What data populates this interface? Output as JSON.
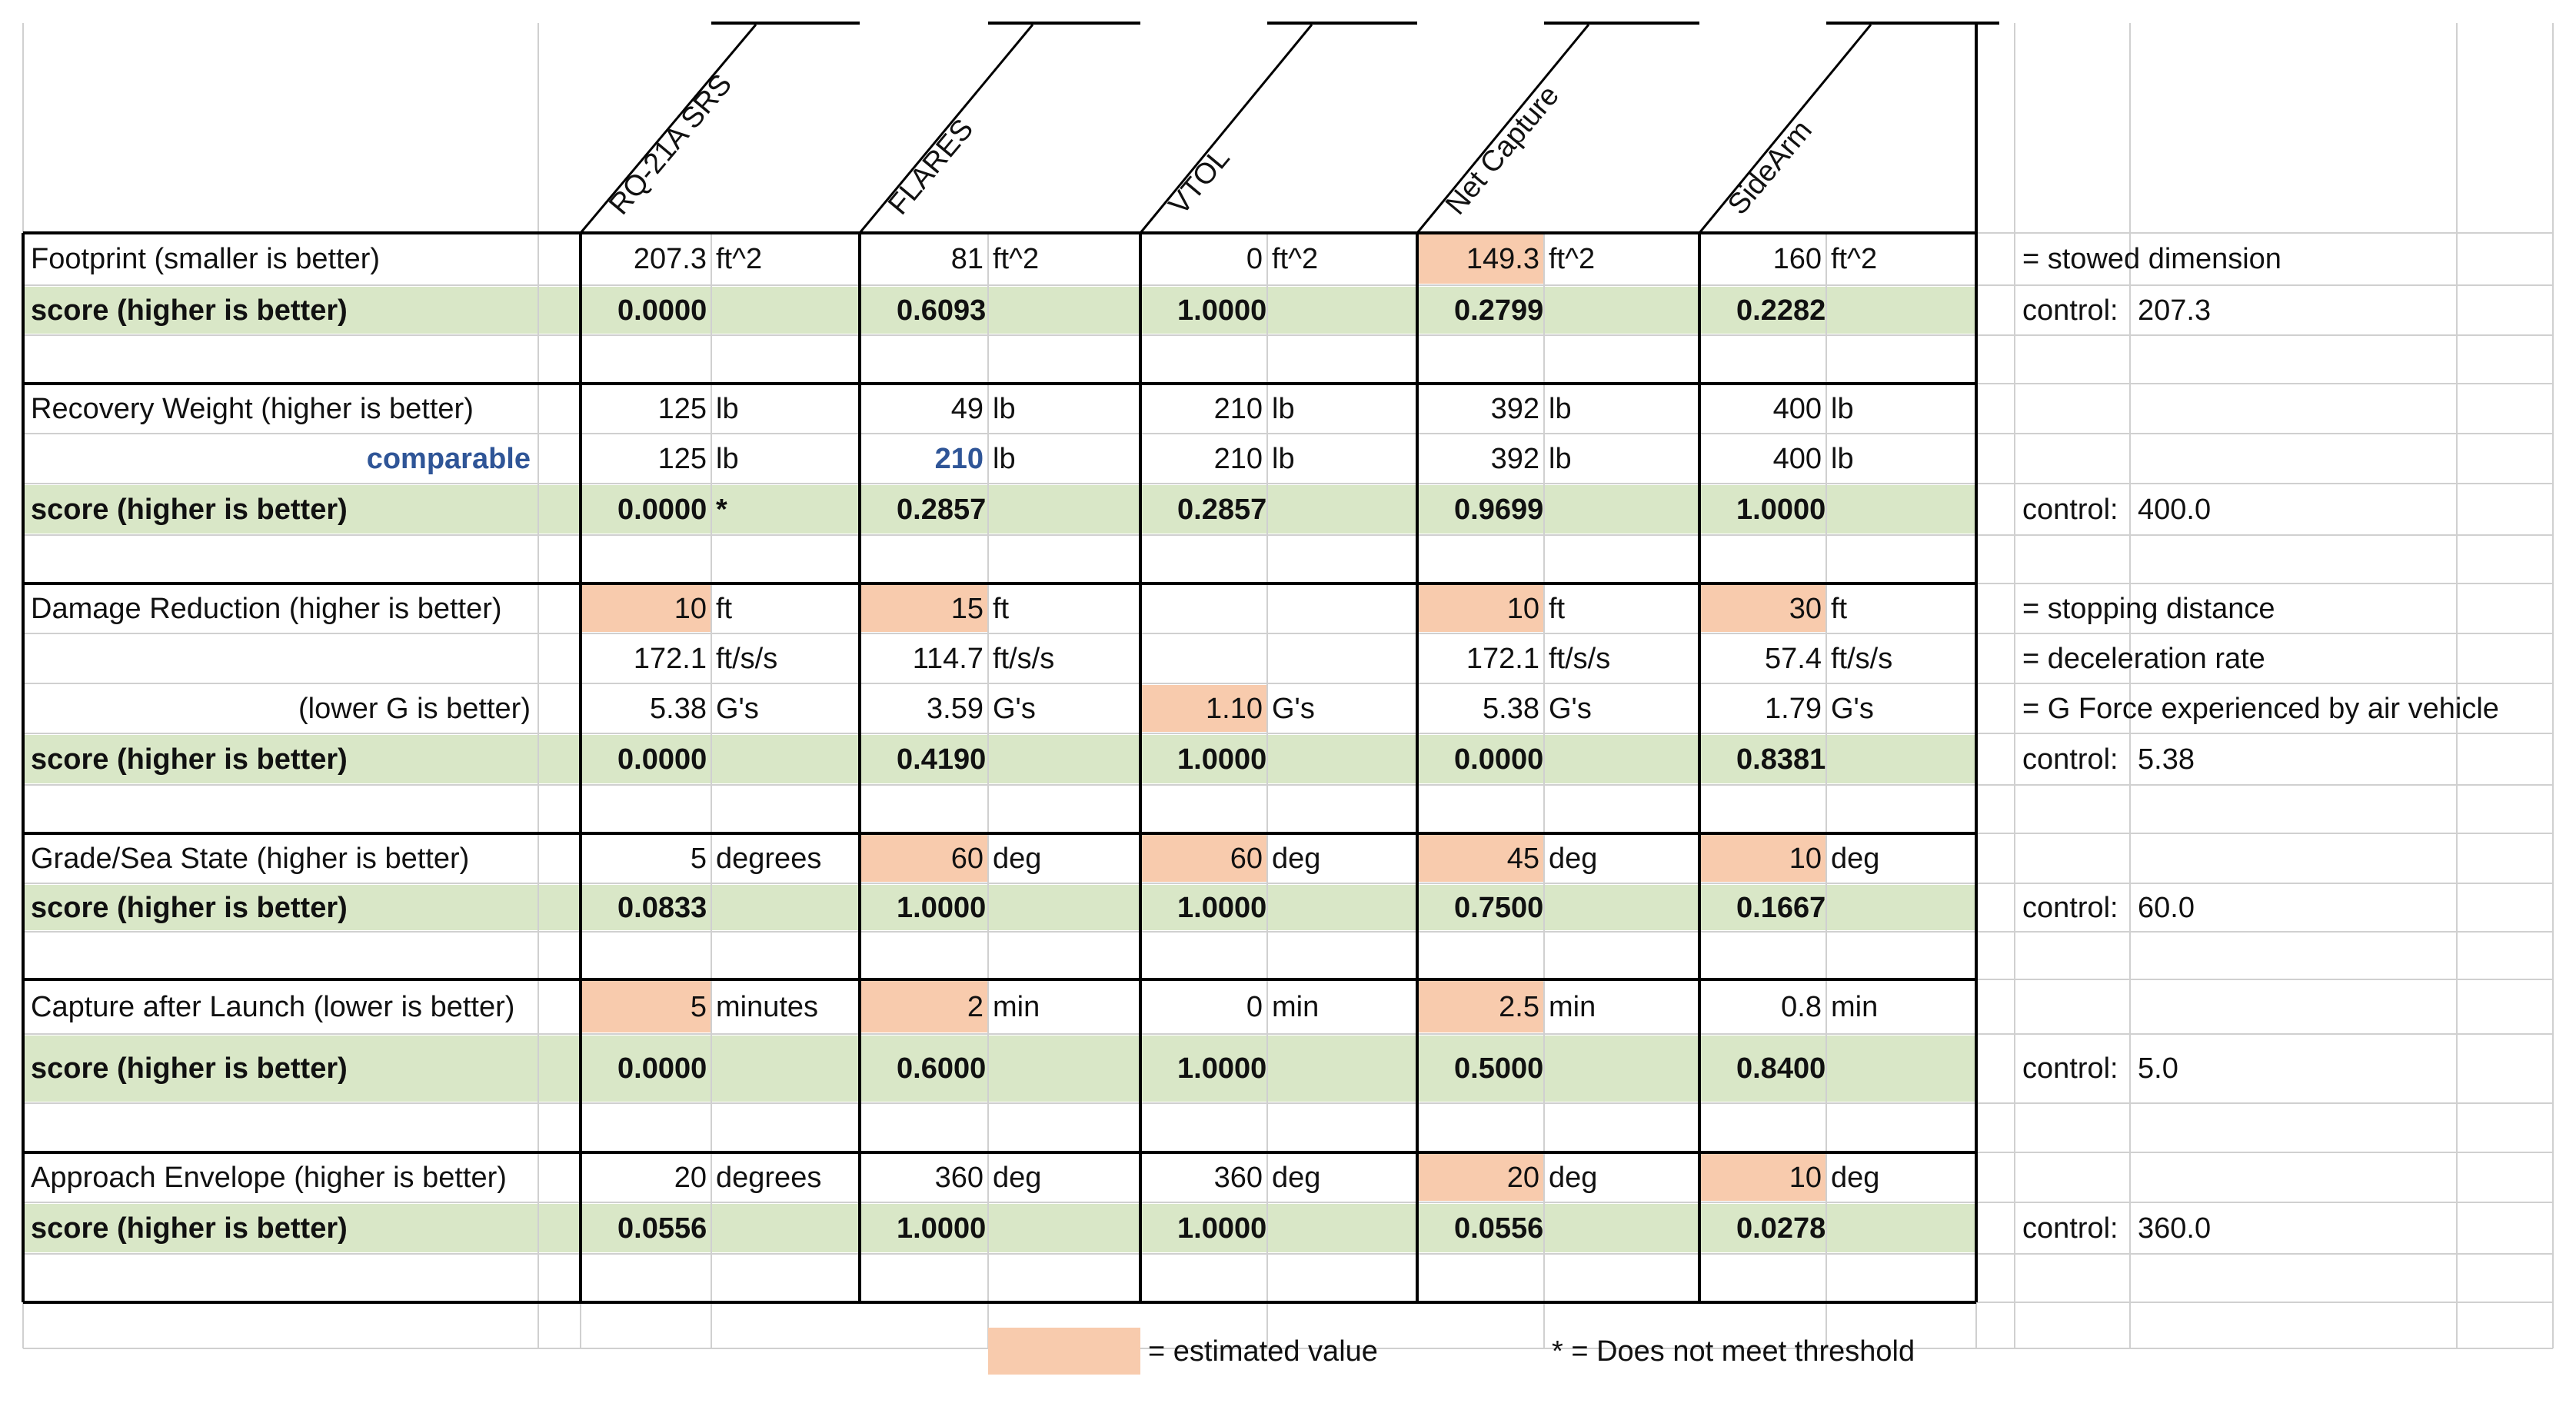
{
  "headers": [
    "RQ-21A SRS",
    "FLARES",
    "VTOL",
    "Net Capture",
    "SideArm"
  ],
  "colors": {
    "estimated": "#f8cbad",
    "score": "#d9e7c7",
    "grid": "#d0d0d0",
    "border": "#000000",
    "comparable": "#2f5597"
  },
  "sections": [
    {
      "rows": [
        {
          "label": "Footprint (smaller is better)",
          "values": [
            "207.3",
            "81",
            "0",
            "149.3",
            "160"
          ],
          "units": [
            "ft^2",
            "ft^2",
            "ft^2",
            "ft^2",
            "ft^2"
          ],
          "estimated": [
            false,
            false,
            false,
            true,
            false
          ],
          "note": "= stowed dimension"
        },
        {
          "label": "score (higher is better)",
          "score": true,
          "values": [
            "0.0000",
            "0.6093",
            "1.0000",
            "0.2799",
            "0.2282"
          ],
          "marks": [
            "",
            "",
            "",
            "",
            ""
          ],
          "control_label": "control:",
          "control_value": "207.3"
        }
      ]
    },
    {
      "rows": [
        {
          "label": "Recovery Weight (higher is better)",
          "values": [
            "125",
            "49",
            "210",
            "392",
            "400"
          ],
          "units": [
            "lb",
            "lb",
            "lb",
            "lb",
            "lb"
          ],
          "estimated": [
            false,
            false,
            false,
            false,
            false
          ]
        },
        {
          "label": "comparable",
          "comparable": true,
          "values": [
            "125",
            "210",
            "210",
            "392",
            "400"
          ],
          "units": [
            "lb",
            "lb",
            "lb",
            "lb",
            "lb"
          ],
          "estimated": [
            false,
            false,
            false,
            false,
            false
          ],
          "blue": [
            false,
            true,
            false,
            false,
            false
          ]
        },
        {
          "label": "score (higher is better)",
          "score": true,
          "values": [
            "0.0000",
            "0.2857",
            "0.2857",
            "0.9699",
            "1.0000"
          ],
          "marks": [
            "*",
            "",
            "",
            "",
            ""
          ],
          "control_label": "control:",
          "control_value": "400.0"
        }
      ]
    },
    {
      "rows": [
        {
          "label": "Damage Reduction (higher is better)",
          "values": [
            "10",
            "15",
            "",
            "10",
            "30"
          ],
          "units": [
            "ft",
            "ft",
            "",
            "ft",
            "ft"
          ],
          "estimated": [
            true,
            true,
            false,
            true,
            true
          ],
          "note": "= stopping distance"
        },
        {
          "label": "",
          "values": [
            "172.1",
            "114.7",
            "",
            "172.1",
            "57.4"
          ],
          "units": [
            "ft/s/s",
            "ft/s/s",
            "",
            "ft/s/s",
            "ft/s/s"
          ],
          "estimated": [
            false,
            false,
            false,
            false,
            false
          ],
          "note": "= deceleration rate"
        },
        {
          "label": "(lower G is better)",
          "labelRight": true,
          "values": [
            "5.38",
            "3.59",
            "1.10",
            "5.38",
            "1.79"
          ],
          "units": [
            "G's",
            "G's",
            "G's",
            "G's",
            "G's"
          ],
          "estimated": [
            false,
            false,
            true,
            false,
            false
          ],
          "note": "= G Force experienced by air vehicle"
        },
        {
          "label": "score (higher is better)",
          "score": true,
          "values": [
            "0.0000",
            "0.4190",
            "1.0000",
            "0.0000",
            "0.8381"
          ],
          "marks": [
            "",
            "",
            "",
            "",
            ""
          ],
          "control_label": "control:",
          "control_value": "5.38"
        }
      ]
    },
    {
      "rows": [
        {
          "label": "Grade/Sea State (higher is better)",
          "values": [
            "5",
            "60",
            "60",
            "45",
            "10"
          ],
          "units": [
            "degrees",
            "deg",
            "deg",
            "deg",
            "deg"
          ],
          "estimated": [
            false,
            true,
            true,
            true,
            true
          ]
        },
        {
          "label": "score (higher is better)",
          "score": true,
          "values": [
            "0.0833",
            "1.0000",
            "1.0000",
            "0.7500",
            "0.1667"
          ],
          "marks": [
            "",
            "",
            "",
            "",
            ""
          ],
          "control_label": "control:",
          "control_value": "60.0"
        }
      ]
    },
    {
      "rows": [
        {
          "label": "Capture after Launch (lower is better)",
          "values": [
            "5",
            "2",
            "0",
            "2.5",
            "0.8"
          ],
          "units": [
            "minutes",
            "min",
            "min",
            "min",
            "min"
          ],
          "estimated": [
            true,
            true,
            false,
            true,
            false
          ]
        },
        {
          "label": "score (higher is better)",
          "score": true,
          "values": [
            "0.0000",
            "0.6000",
            "1.0000",
            "0.5000",
            "0.8400"
          ],
          "marks": [
            "",
            "",
            "",
            "",
            ""
          ],
          "control_label": "control:",
          "control_value": "5.0"
        }
      ]
    },
    {
      "rows": [
        {
          "label": "Approach Envelope (higher is better)",
          "values": [
            "20",
            "360",
            "360",
            "20",
            "10"
          ],
          "units": [
            "degrees",
            "deg",
            "deg",
            "deg",
            "deg"
          ],
          "estimated": [
            false,
            false,
            false,
            true,
            true
          ]
        },
        {
          "label": "score (higher is better)",
          "score": true,
          "values": [
            "0.0556",
            "1.0000",
            "1.0000",
            "0.0556",
            "0.0278"
          ],
          "marks": [
            "",
            "",
            "",
            "",
            ""
          ],
          "control_label": "control:",
          "control_value": "360.0"
        }
      ]
    }
  ],
  "legend": {
    "estimated": "= estimated value",
    "threshold": "* = Does not meet threshold"
  }
}
